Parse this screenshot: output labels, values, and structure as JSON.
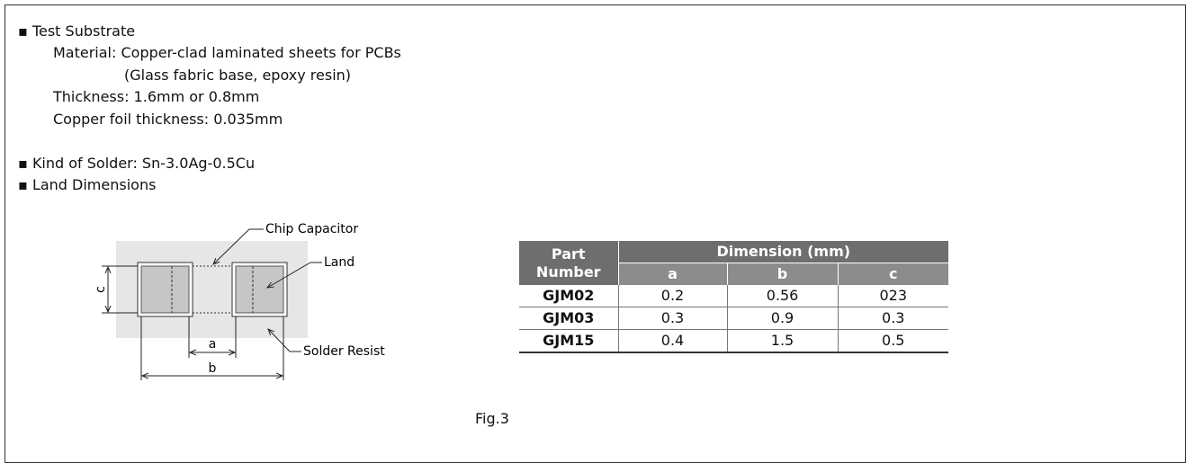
{
  "list": [
    {
      "title": "Test Substrate",
      "lines": [
        "Material: Copper-clad laminated sheets for PCBs",
        "(Glass fabric base, epoxy resin)",
        "Thickness: 1.6mm or 0.8mm",
        "Copper foil thickness: 0.035mm"
      ]
    },
    {
      "title": "Kind of Solder: Sn-3.0Ag-0.5Cu"
    },
    {
      "title": "Land Dimensions"
    }
  ],
  "diagram": {
    "chip_label": "Chip Capacitor",
    "land_label": "Land",
    "resist_label": "Solder Resist",
    "dim_a": "a",
    "dim_b": "b",
    "dim_c": "c"
  },
  "table": {
    "header": {
      "part": "Part Number",
      "group": "Dimension (mm)",
      "columns": [
        "a",
        "b",
        "c"
      ]
    },
    "rows": [
      [
        "GJM02",
        "0.2",
        "0.56",
        "023"
      ],
      [
        "GJM03",
        "0.3",
        "0.9",
        "0.3"
      ],
      [
        "GJM15",
        "0.4",
        "1.5",
        "0.5"
      ]
    ]
  },
  "caption": "Fig.3"
}
